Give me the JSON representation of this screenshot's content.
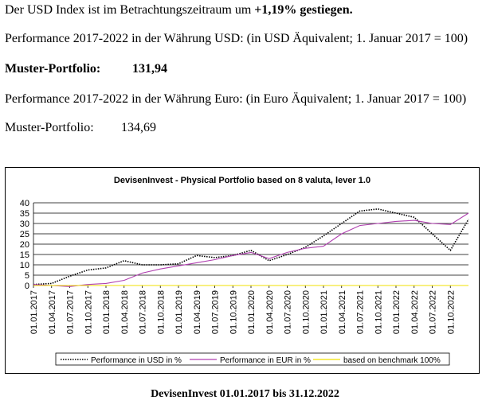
{
  "text": {
    "line1_prefix": "Der USD Index ist im Betrachtungszeitraum um ",
    "line1_value": "+1,19% gestiegen.",
    "line2": "Performance 2017-2022 in der Währung USD: (in USD Äquivalent; 1. Januar 2017 = 100)",
    "line3_label": "Muster-Portfolio:",
    "line3_value": "131,94",
    "line4": "Performance 2017-2022 in der Währung Euro: (in Euro Äquivalent; 1. Januar 2017 = 100)",
    "line5_label": "Muster-Portfolio:",
    "line5_value": "134,69",
    "caption": "DevisenInvest 01.01.2017 bis 31.12.2022"
  },
  "chart_data": {
    "type": "line",
    "title": "DevisenInvest - Physical Portfolio based on 8 valuta, lever 1.0",
    "xlabel": "",
    "ylabel": "",
    "ylim": [
      0,
      40
    ],
    "yticks": [
      0,
      5,
      10,
      15,
      20,
      25,
      30,
      35,
      40
    ],
    "grid": true,
    "legend_position": "bottom",
    "x_tick_labels": [
      "01.01.2017",
      "01.04.2017",
      "01.07.2017",
      "01.10.2017",
      "01.01.2018",
      "01.04.2018",
      "01.07.2018",
      "01.10.2018",
      "01.01.2019",
      "01.04.2019",
      "01.07.2019",
      "01.10.2019",
      "01.01.2020",
      "01.04.2020",
      "01.07.2020",
      "01.10.2020",
      "01.01.2021",
      "01.04.2021",
      "01.07.2021",
      "01.10.2021",
      "01.01.2022",
      "01.04.2022",
      "01.07.2022",
      "01.10.2022"
    ],
    "x": [
      "01.01.2017",
      "01.04.2017",
      "01.07.2017",
      "01.10.2017",
      "01.01.2018",
      "01.04.2018",
      "01.07.2018",
      "01.10.2018",
      "01.01.2019",
      "01.04.2019",
      "01.07.2019",
      "01.10.2019",
      "01.01.2020",
      "01.04.2020",
      "01.07.2020",
      "01.10.2020",
      "01.01.2021",
      "01.04.2021",
      "01.07.2021",
      "01.10.2021",
      "01.01.2022",
      "01.04.2022",
      "01.07.2022",
      "01.10.2022",
      "31.12.2022"
    ],
    "series": [
      {
        "name": "Performance in USD in %",
        "color": "#000000",
        "style": "dotted",
        "values": [
          0.5,
          1,
          4.5,
          7.5,
          8.5,
          12,
          10,
          10,
          10.5,
          14.5,
          13.5,
          14.5,
          17,
          12,
          15,
          18.5,
          24,
          30,
          36,
          37,
          35,
          33,
          25,
          17,
          32
        ]
      },
      {
        "name": "Performance in EUR in %",
        "color": "#b040b0",
        "style": "solid",
        "values": [
          0.5,
          0,
          -0.5,
          0.5,
          1,
          2.5,
          6,
          8,
          9.5,
          11,
          12.5,
          14.5,
          16,
          13,
          16,
          18,
          19,
          25,
          29,
          30,
          31,
          31.5,
          30,
          29.5,
          35
        ]
      },
      {
        "name": "based on benchmark 100%",
        "color": "#f0e000",
        "style": "solid",
        "values": [
          0,
          0,
          0,
          0,
          0,
          0,
          0,
          0,
          0,
          0,
          0,
          0,
          0,
          0,
          0,
          0,
          0,
          0,
          0,
          0,
          0,
          0,
          0,
          0,
          0
        ]
      }
    ]
  }
}
